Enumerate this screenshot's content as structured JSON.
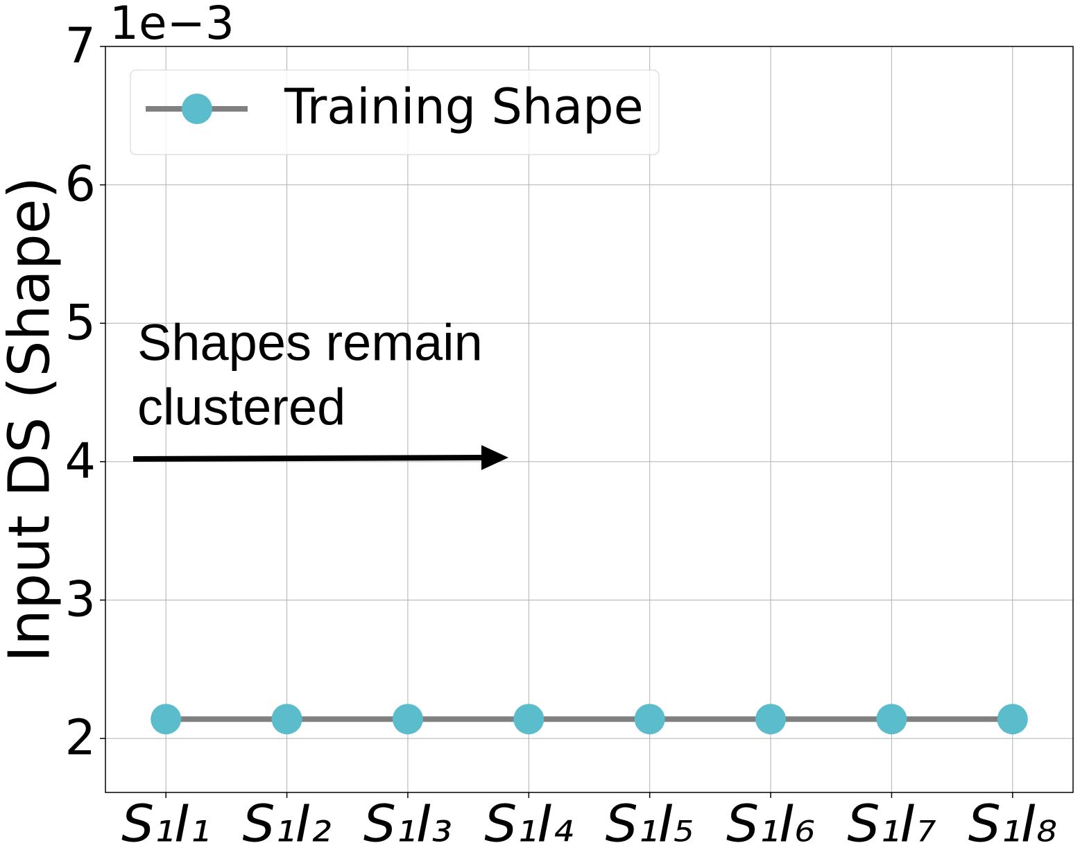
{
  "chart_data": {
    "type": "line",
    "y_offset_label": "1e−3",
    "ylabel": "Input DS (Shape)",
    "categories": [
      "S₁I₁",
      "S₁I₂",
      "S₁I₃",
      "S₁I₄",
      "S₁I₅",
      "S₁I₆",
      "S₁I₇",
      "S₁I₈"
    ],
    "series": [
      {
        "name": "Training Shape",
        "color": "#5bbccc",
        "line_color": "#808080",
        "values": [
          2.14,
          2.14,
          2.14,
          2.14,
          2.14,
          2.14,
          2.14,
          2.14
        ]
      }
    ],
    "ylim": [
      1.61,
      7
    ],
    "yticks": [
      2,
      3,
      4,
      5,
      6,
      7
    ],
    "grid": true,
    "legend": "upper left",
    "annotation": [
      "Shapes remain",
      "clustered"
    ]
  }
}
